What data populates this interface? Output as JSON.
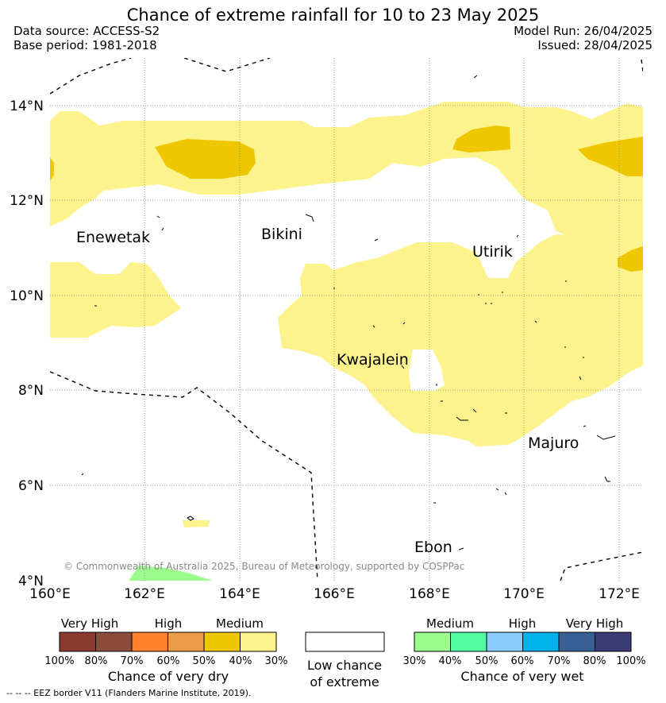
{
  "header": {
    "title": "Chance of extreme rainfall for 10 to 23 May 2025",
    "data_source": "Data source: ACCESS-S2",
    "base_period": "Base period: 1981-2018",
    "model_run": "Model Run: 26/04/2025",
    "issued": "Issued: 28/04/2025"
  },
  "map": {
    "lon_ticks": [
      "160°E",
      "162°E",
      "164°E",
      "166°E",
      "168°E",
      "170°E",
      "172°E"
    ],
    "lat_ticks": [
      "14°N",
      "12°N",
      "10°N",
      "8°N",
      "6°N",
      "4°N"
    ],
    "places": [
      "Enewetak",
      "Bikini",
      "Utirik",
      "Kwajalein",
      "Majuro",
      "Ebon"
    ],
    "copyright": "© Commonwealth of Australia 2025, Bureau of Meteorology, supported by COSPPac",
    "colors": {
      "dry_30_40": "#fdf38c",
      "dry_40_50": "#eec700",
      "wet_30_40": "#9dfc8e",
      "grid": "#888888"
    }
  },
  "legend": {
    "dry": {
      "levels": [
        "Very High",
        "High",
        "Medium"
      ],
      "percents": [
        "100%",
        "80%",
        "70%",
        "60%",
        "50%",
        "40%",
        "30%"
      ],
      "colors": [
        "#8b3a2f",
        "#8b4b3d",
        "#ff7f2a",
        "#eb9b4a",
        "#eec700",
        "#fdf38c"
      ],
      "caption": "Chance of very dry"
    },
    "neutral": {
      "caption_line1": "Low chance",
      "caption_line2": "of extreme"
    },
    "wet": {
      "levels": [
        "Medium",
        "High",
        "Very High"
      ],
      "percents": [
        "30%",
        "40%",
        "50%",
        "60%",
        "70%",
        "80%",
        "100%"
      ],
      "colors": [
        "#9dfc8e",
        "#55fca2",
        "#89cbfa",
        "#00b1ec",
        "#3a6098",
        "#3b3c75"
      ],
      "caption": "Chance of very wet"
    }
  },
  "footer": {
    "eez_note": "--  --  -- EEZ border V11 (Flanders Marine Institute, 2019)."
  }
}
